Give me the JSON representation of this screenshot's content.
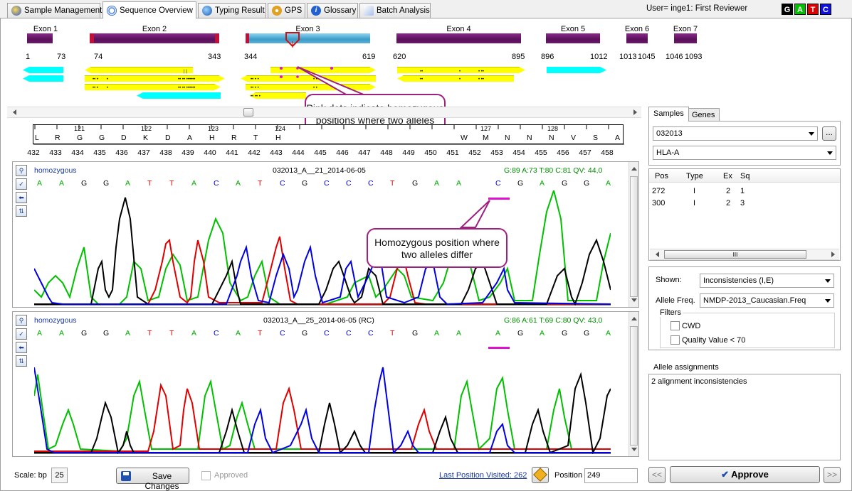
{
  "tabs": [
    {
      "label": "Sample Management",
      "icon": "globe-icon",
      "active": false
    },
    {
      "label": "Sequence Overview",
      "icon": "dna-gear-icon",
      "active": true
    },
    {
      "label": "Typing Result",
      "icon": "typing-icon",
      "active": false
    },
    {
      "label": "GPS",
      "icon": "gps-icon",
      "active": false
    },
    {
      "label": "Glossary",
      "icon": "info-icon",
      "active": false
    },
    {
      "label": "Batch Analysis",
      "icon": "batch-icon",
      "active": false
    }
  ],
  "user": "User= inge1: First Reviewer",
  "bases_legend": [
    {
      "letter": "G",
      "color": "#000000"
    },
    {
      "letter": "A",
      "color": "#00b000"
    },
    {
      "letter": "T",
      "color": "#e00000"
    },
    {
      "letter": "C",
      "color": "#0000e0"
    }
  ],
  "exons": [
    {
      "name": "Exon 1",
      "start": "1",
      "end": "73"
    },
    {
      "name": "Exon 2",
      "start": "74",
      "end": "343"
    },
    {
      "name": "Exon 3",
      "start": "344",
      "end": "619"
    },
    {
      "name": "Exon 4",
      "start": "620",
      "end": "895"
    },
    {
      "name": "Exon 5",
      "start": "896",
      "end": "1012"
    },
    {
      "name": "Exon 6",
      "start": "1013",
      "end": "1045"
    },
    {
      "name": "Exon 7",
      "start": "1046",
      "end": "1093"
    }
  ],
  "ruler": {
    "codons": [
      "121",
      "122",
      "123",
      "124",
      "127",
      "128"
    ],
    "amino_acids": [
      "L",
      "R",
      "G",
      "G",
      "D",
      "K",
      "D",
      "A",
      "H",
      "R",
      "T",
      "H",
      "W",
      "M",
      "N",
      "N",
      "N",
      "V",
      "S",
      "A"
    ],
    "positions": [
      "432",
      "433",
      "434",
      "435",
      "436",
      "437",
      "438",
      "439",
      "440",
      "441",
      "442",
      "443",
      "444",
      "445",
      "446",
      "447",
      "448",
      "449",
      "450",
      "451",
      "452",
      "453",
      "454",
      "455",
      "456",
      "457",
      "458"
    ]
  },
  "traces": [
    {
      "label": "homozygous",
      "title": "032013_A__21_2014-06-05",
      "stats": "G:89 A:73 T:80 C:81 QV: 44,0",
      "bases": [
        "A",
        "A",
        "G",
        "G",
        "A",
        "T",
        "T",
        "A",
        "C",
        "A",
        "T",
        "C",
        "G",
        "C",
        "C",
        "C",
        "T",
        "G",
        "A",
        "A",
        "C",
        "G",
        "A",
        "G",
        "G",
        "A"
      ]
    },
    {
      "label": "homozygous",
      "title": "032013_A__25_2014-06-05 (RC)",
      "stats": "G:86 A:61 T:69 C:80 QV: 43,0",
      "bases": [
        "A",
        "A",
        "G",
        "G",
        "A",
        "T",
        "T",
        "A",
        "C",
        "A",
        "T",
        "C",
        "G",
        "C",
        "C",
        "C",
        "T",
        "G",
        "A",
        "A",
        "A",
        "G",
        "A",
        "G",
        "G",
        "A"
      ]
    }
  ],
  "callouts": {
    "pink_dots": "Pink dots indicate homozygous positions where two alleles differ",
    "homozygous_position": "Homozygous position where two alleles differ"
  },
  "right_panel": {
    "tabs": [
      "Samples",
      "Genes"
    ],
    "sample": "032013",
    "more_button": "...",
    "gene": "HLA-A",
    "table_headers": [
      "Pos",
      "Type",
      "Ex",
      "Sq"
    ],
    "table_rows": [
      [
        "272",
        "I",
        "2",
        "1"
      ],
      [
        "300",
        "I",
        "2",
        "3"
      ]
    ],
    "scroll_grip": "III",
    "shown_label": "Shown:",
    "shown_value": "Inconsistencies (I,E)",
    "allele_freq_label": "Allele Freq.",
    "allele_freq_value": "NMDP-2013_Caucasian.Freq",
    "filters_label": "Filters",
    "filter_cwd": "CWD",
    "filter_qv": "Quality Value < 70",
    "assignments_label": "Allele assignments",
    "assignments_text": "2 alignment inconsistencies"
  },
  "bottom": {
    "scale_label": "Scale: bp",
    "scale_value": "25",
    "save_button": "Save Changes",
    "approved_label": "Approved",
    "last_position_link": "Last Position Visited: 262",
    "position_label": "Position",
    "position_value": "249",
    "prev_button": "<<",
    "approve_button": "Approve",
    "next_button": ">>"
  },
  "colors": {
    "accent_pink": "#e010d0",
    "callout_border": "#a0207f",
    "read_yellow": "#ffff00",
    "read_cyan": "#00ffff"
  }
}
